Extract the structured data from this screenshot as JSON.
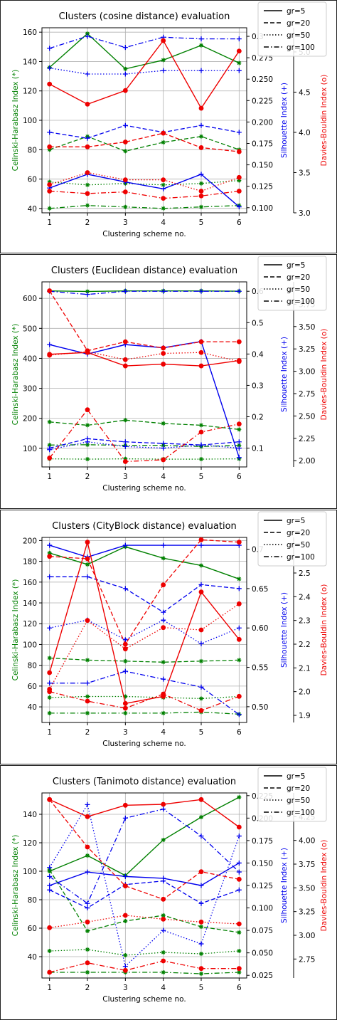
{
  "legend": {
    "styles": [
      {
        "label": "gr=5",
        "dash": "solid"
      },
      {
        "label": "gr=20",
        "dash": "dashed"
      },
      {
        "label": "gr=50",
        "dash": "dotted"
      },
      {
        "label": "gr=100",
        "dash": "dashdot"
      }
    ]
  },
  "colors": {
    "ch": "#008000",
    "sil": "#0000ee",
    "db": "#ee0000",
    "grid": "#b0b0b0"
  },
  "chart_data": [
    {
      "type": "line",
      "title": "Clusters (cosine distance) evaluation",
      "xlabel": "Clustering scheme no.",
      "x": [
        1,
        2,
        3,
        4,
        5,
        6
      ],
      "xticks": [
        "1",
        "2",
        "3",
        "4",
        "5",
        "6"
      ],
      "axes": {
        "ch": {
          "label": "Celinski-Harabasz Index (*)",
          "ylim": [
            37,
            163
          ],
          "ticks": [
            40,
            60,
            80,
            100,
            120,
            140,
            160
          ],
          "tick_labels": [
            "40",
            "60",
            "80",
            "100",
            "120",
            "140",
            "160"
          ]
        },
        "sil": {
          "label": "Silhouette Index (+)",
          "ylim": [
            0.094,
            0.31
          ],
          "ticks": [
            0.1,
            0.125,
            0.15,
            0.175,
            0.2,
            0.225,
            0.25,
            0.275,
            0.3
          ],
          "tick_labels": [
            "0.100",
            "0.125",
            "0.150",
            "0.175",
            "0.200",
            "0.225",
            "0.250",
            "0.275",
            "0.3"
          ]
        },
        "db": {
          "label": "Davies-Bouldin Index (o)",
          "ylim": [
            3.0,
            5.3
          ],
          "ticks": [
            3.0,
            3.5,
            4.0,
            4.5,
            5.0
          ],
          "tick_labels": [
            "3.0",
            "3.5",
            "4.0",
            "4.5",
            "5.0"
          ]
        }
      },
      "series": [
        {
          "metric": "ch",
          "name": "gr=5",
          "values": [
            136,
            159,
            135,
            141,
            151,
            139
          ]
        },
        {
          "metric": "ch",
          "name": "gr=20",
          "values": [
            80,
            89,
            79,
            85,
            89,
            80
          ]
        },
        {
          "metric": "ch",
          "name": "gr=50",
          "values": [
            58,
            56,
            57,
            56,
            57,
            59
          ]
        },
        {
          "metric": "ch",
          "name": "gr=100",
          "values": [
            40,
            42,
            41,
            40,
            41,
            42
          ]
        },
        {
          "metric": "sil",
          "name": "gr=5",
          "values": [
            0.123,
            0.139,
            0.13,
            0.122,
            0.139,
            0.101
          ]
        },
        {
          "metric": "sil",
          "name": "gr=20",
          "values": [
            0.188,
            0.181,
            0.196,
            0.188,
            0.196,
            0.188
          ]
        },
        {
          "metric": "sil",
          "name": "gr=50",
          "values": [
            0.263,
            0.256,
            0.256,
            0.26,
            0.26,
            0.26
          ]
        },
        {
          "metric": "sil",
          "name": "gr=100",
          "values": [
            0.286,
            0.3,
            0.287,
            0.299,
            0.297,
            0.297
          ]
        },
        {
          "metric": "db",
          "name": "gr=5",
          "values": [
            4.6,
            4.35,
            4.52,
            5.14,
            4.3,
            5.01
          ]
        },
        {
          "metric": "db",
          "name": "gr=20",
          "values": [
            3.82,
            3.82,
            3.88,
            3.99,
            3.81,
            3.76
          ]
        },
        {
          "metric": "db",
          "name": "gr=50",
          "values": [
            3.35,
            3.5,
            3.41,
            3.41,
            3.27,
            3.44
          ]
        },
        {
          "metric": "db",
          "name": "gr=100",
          "values": [
            3.27,
            3.24,
            3.26,
            3.18,
            3.21,
            3.27
          ]
        }
      ]
    },
    {
      "type": "line",
      "title": "Clusters (Euclidean distance) evaluation",
      "xlabel": "Clustering scheme no.",
      "x": [
        1,
        2,
        3,
        4,
        5,
        6
      ],
      "xticks": [
        "1",
        "2",
        "3",
        "4",
        "5",
        "6"
      ],
      "axes": {
        "ch": {
          "label": "Celinski-Harabasz Index (*)",
          "ylim": [
            38,
            655
          ],
          "ticks": [
            100,
            200,
            300,
            400,
            500,
            600
          ],
          "tick_labels": [
            "100",
            "200",
            "300",
            "400",
            "500",
            "600"
          ]
        },
        "sil": {
          "label": "Silhouette Index (+)",
          "ylim": [
            0.04,
            0.63
          ],
          "ticks": [
            0.1,
            0.2,
            0.3,
            0.4,
            0.5,
            0.6
          ],
          "tick_labels": [
            "0.1",
            "0.2",
            "0.3",
            "0.4",
            "0.5",
            "0.6"
          ]
        },
        "db": {
          "label": "Davies-Bouldin Index (o)",
          "ylim": [
            1.93,
            4.0
          ],
          "ticks": [
            2.0,
            2.25,
            2.5,
            2.75,
            3.0,
            3.25,
            3.5,
            3.75
          ],
          "tick_labels": [
            "2.00",
            "2.25",
            "2.50",
            "2.75",
            "3.00",
            "3.25",
            "3.50",
            "3.75"
          ]
        }
      },
      "series": [
        {
          "metric": "ch",
          "name": "gr=5",
          "values": [
            625,
            623,
            625,
            625,
            625,
            624
          ]
        },
        {
          "metric": "ch",
          "name": "gr=20",
          "values": [
            188,
            177,
            194,
            183,
            177,
            163
          ]
        },
        {
          "metric": "ch",
          "name": "gr=50",
          "values": [
            65,
            64,
            65,
            64,
            64,
            65
          ]
        },
        {
          "metric": "ch",
          "name": "gr=100",
          "values": [
            111,
            112,
            110,
            110,
            106,
            110
          ]
        },
        {
          "metric": "sil",
          "name": "gr=5",
          "values": [
            0.43,
            0.4,
            0.43,
            0.42,
            0.44,
            0.07
          ]
        },
        {
          "metric": "sil",
          "name": "gr=20",
          "values": [
            0.1,
            0.13,
            0.12,
            0.115,
            0.11,
            0.12
          ]
        },
        {
          "metric": "sil",
          "name": "gr=50",
          "values": [
            0.095,
            0.12,
            0.105,
            0.1,
            0.11,
            0.1
          ]
        },
        {
          "metric": "sil",
          "name": "gr=100",
          "values": [
            0.6,
            0.59,
            0.6,
            0.6,
            0.6,
            0.6
          ]
        },
        {
          "metric": "db",
          "name": "gr=5",
          "values": [
            3.19,
            3.21,
            3.06,
            3.08,
            3.06,
            3.12
          ]
        },
        {
          "metric": "db",
          "name": "gr=20",
          "values": [
            3.9,
            3.23,
            3.33,
            3.26,
            3.33,
            3.33
          ]
        },
        {
          "metric": "db",
          "name": "gr=50",
          "values": [
            3.18,
            3.22,
            3.13,
            3.2,
            3.21,
            3.11
          ]
        },
        {
          "metric": "db",
          "name": "gr=100",
          "values": [
            2.03,
            2.57,
            1.99,
            2.01,
            2.32,
            2.41
          ]
        }
      ]
    },
    {
      "type": "line",
      "title": "Clusters (CityBlock distance) evaluation",
      "xlabel": "Clustering scheme no.",
      "x": [
        1,
        2,
        3,
        4,
        5,
        6
      ],
      "xticks": [
        "1",
        "2",
        "3",
        "4",
        "5",
        "6"
      ],
      "axes": {
        "ch": {
          "label": "Celinski-Harabasz Index (*)",
          "ylim": [
            25,
            203
          ],
          "ticks": [
            40,
            60,
            80,
            100,
            120,
            140,
            160,
            180,
            200
          ],
          "tick_labels": [
            "40",
            "60",
            "80",
            "100",
            "120",
            "140",
            "160",
            "180",
            "200"
          ]
        },
        "sil": {
          "label": "Silhouette Index (+)",
          "ylim": [
            0.48,
            0.715
          ],
          "ticks": [
            0.5,
            0.55,
            0.6,
            0.65,
            0.7
          ],
          "tick_labels": [
            "0.50",
            "0.55",
            "0.60",
            "0.65",
            "0.7"
          ]
        },
        "db": {
          "label": "Davies-Bouldin Index (o)",
          "ylim": [
            1.87,
            2.65
          ],
          "ticks": [
            1.9,
            2.0,
            2.1,
            2.2,
            2.3,
            2.4,
            2.5
          ],
          "tick_labels": [
            "1.9",
            "2.0",
            "2.1",
            "2.2",
            "2.3",
            "2.4",
            "2.5"
          ]
        }
      },
      "series": [
        {
          "metric": "ch",
          "name": "gr=5",
          "values": [
            188,
            177,
            194,
            183,
            176,
            163
          ]
        },
        {
          "metric": "ch",
          "name": "gr=20",
          "values": [
            87,
            85,
            84,
            83,
            84,
            85
          ]
        },
        {
          "metric": "ch",
          "name": "gr=50",
          "values": [
            49,
            50,
            50,
            49,
            48,
            50
          ]
        },
        {
          "metric": "ch",
          "name": "gr=100",
          "values": [
            34,
            34,
            34,
            34,
            35,
            33
          ]
        },
        {
          "metric": "sil",
          "name": "gr=5",
          "values": [
            0.705,
            0.69,
            0.705,
            0.705,
            0.705,
            0.705
          ]
        },
        {
          "metric": "sil",
          "name": "gr=20",
          "values": [
            0.665,
            0.665,
            0.65,
            0.62,
            0.655,
            0.65
          ]
        },
        {
          "metric": "sil",
          "name": "gr=50",
          "values": [
            0.6,
            0.61,
            0.585,
            0.61,
            0.58,
            0.6
          ]
        },
        {
          "metric": "sil",
          "name": "gr=100",
          "values": [
            0.53,
            0.53,
            0.545,
            0.535,
            0.525,
            0.49
          ]
        },
        {
          "metric": "db",
          "name": "gr=5",
          "values": [
            2.08,
            2.63,
            1.95,
            1.98,
            2.42,
            2.22
          ]
        },
        {
          "metric": "db",
          "name": "gr=20",
          "values": [
            2.57,
            2.56,
            2.2,
            2.45,
            2.64,
            2.63
          ]
        },
        {
          "metric": "db",
          "name": "gr=50",
          "values": [
            2.01,
            2.3,
            2.18,
            2.27,
            2.26,
            2.37
          ]
        },
        {
          "metric": "db",
          "name": "gr=100",
          "values": [
            2.0,
            1.96,
            1.93,
            1.99,
            1.92,
            1.98
          ]
        }
      ]
    },
    {
      "type": "line",
      "title": "Clusters (Tanimoto distance) evaluation",
      "xlabel": "Clustering scheme no.",
      "x": [
        1,
        2,
        3,
        4,
        5,
        6
      ],
      "xticks": [
        "1",
        "2",
        "3",
        "4",
        "5",
        "6"
      ],
      "axes": {
        "ch": {
          "label": "Celinski-Harabasz Index (*)",
          "ylim": [
            25,
            155
          ],
          "ticks": [
            40,
            60,
            80,
            100,
            120,
            140
          ],
          "tick_labels": [
            "40",
            "60",
            "80",
            "100",
            "120",
            "140"
          ]
        },
        "sil": {
          "label": "Silhouette Index (+)",
          "ylim": [
            0.022,
            0.228
          ],
          "ticks": [
            0.025,
            0.05,
            0.075,
            0.1,
            0.125,
            0.15,
            0.175,
            0.2,
            0.225
          ],
          "tick_labels": [
            "0.025",
            "0.050",
            "0.075",
            "0.100",
            "0.125",
            "0.150",
            "0.175",
            "0.200",
            "0.225"
          ]
        },
        "db": {
          "label": "Davies-Bouldin Index (o)",
          "ylim": [
            2.55,
            4.5
          ],
          "ticks": [
            2.75,
            3.0,
            3.25,
            3.5,
            3.75,
            4.0,
            4.25
          ],
          "tick_labels": [
            "2.75",
            "3.00",
            "3.25",
            "3.50",
            "3.75",
            "4.00",
            "4.25"
          ]
        }
      },
      "series": [
        {
          "metric": "ch",
          "name": "gr=5",
          "values": [
            100,
            111,
            97,
            122,
            138,
            152
          ]
        },
        {
          "metric": "ch",
          "name": "gr=20",
          "values": [
            101,
            58,
            65,
            69,
            61,
            57
          ]
        },
        {
          "metric": "ch",
          "name": "gr=50",
          "values": [
            44,
            45,
            41,
            43,
            42,
            44
          ]
        },
        {
          "metric": "ch",
          "name": "gr=100",
          "values": [
            29,
            29,
            29,
            29,
            28,
            29
          ]
        },
        {
          "metric": "sil",
          "name": "gr=5",
          "values": [
            0.125,
            0.14,
            0.135,
            0.133,
            0.125,
            0.15
          ]
        },
        {
          "metric": "sil",
          "name": "gr=20",
          "values": [
            0.12,
            0.1,
            0.126,
            0.13,
            0.105,
            0.12
          ]
        },
        {
          "metric": "sil",
          "name": "gr=50",
          "values": [
            0.145,
            0.215,
            0.035,
            0.075,
            0.06,
            0.18
          ]
        },
        {
          "metric": "sil",
          "name": "gr=100",
          "values": [
            0.135,
            0.105,
            0.2,
            0.21,
            0.18,
            0.14
          ]
        },
        {
          "metric": "db",
          "name": "gr=5",
          "values": [
            4.43,
            4.25,
            4.37,
            4.38,
            4.43,
            4.14
          ]
        },
        {
          "metric": "db",
          "name": "gr=20",
          "values": [
            4.43,
            3.93,
            3.52,
            3.38,
            3.67,
            3.59
          ]
        },
        {
          "metric": "db",
          "name": "gr=50",
          "values": [
            3.08,
            3.14,
            3.21,
            3.17,
            3.14,
            3.12
          ]
        },
        {
          "metric": "db",
          "name": "gr=100",
          "values": [
            2.61,
            2.71,
            2.63,
            2.73,
            2.65,
            2.65
          ]
        }
      ]
    }
  ]
}
